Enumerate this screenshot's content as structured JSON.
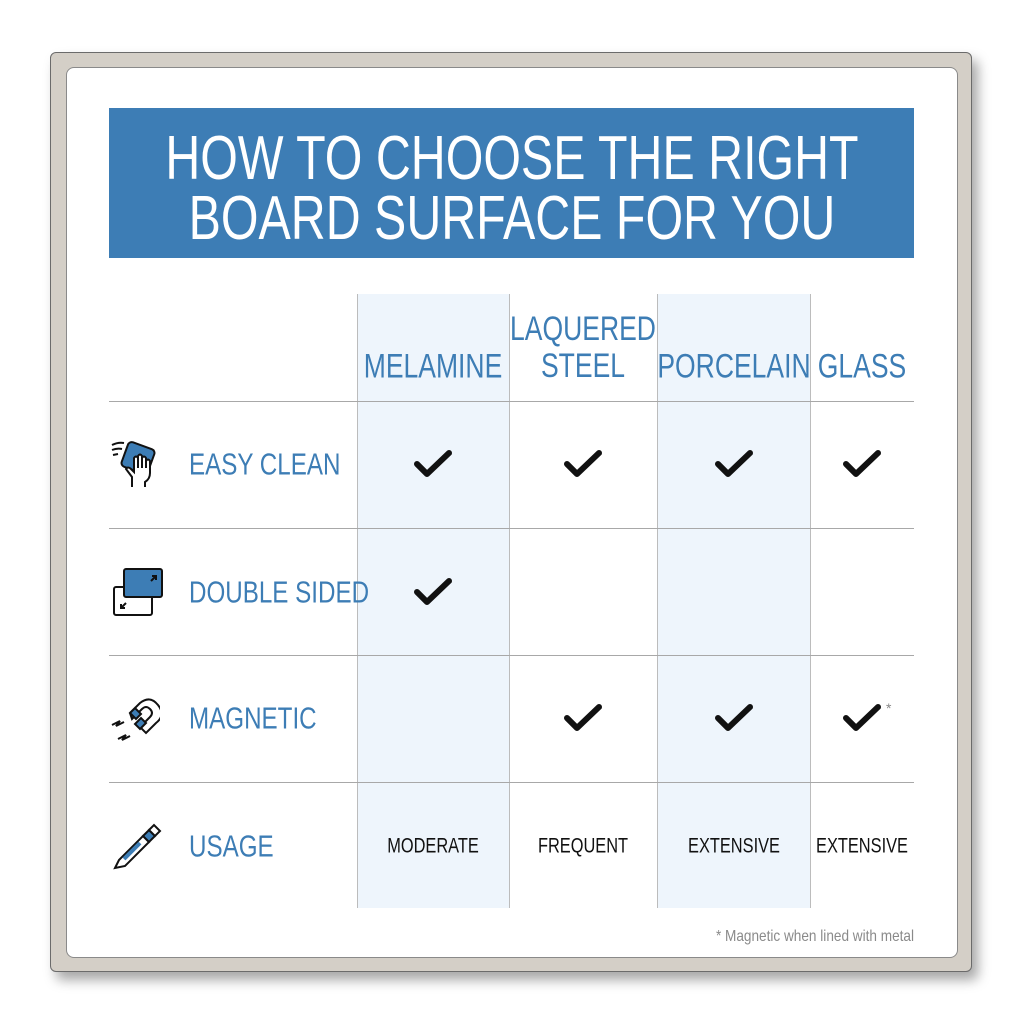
{
  "title": {
    "line1": "HOW TO CHOOSE THE RIGHT",
    "line2": "BOARD SURFACE FOR YOU"
  },
  "columns": [
    {
      "label": "MELAMINE",
      "shaded": true
    },
    {
      "label_line1": "LAQUERED",
      "label_line2": "STEEL",
      "shaded": false
    },
    {
      "label": "PORCELAIN",
      "shaded": true
    },
    {
      "label": "GLASS",
      "shaded": false
    }
  ],
  "rows": [
    {
      "label": "EASY CLEAN",
      "icon": "hand-wiping-icon",
      "checks": [
        true,
        true,
        true,
        true
      ]
    },
    {
      "label": "DOUBLE SIDED",
      "icon": "double-sided-board-icon",
      "checks": [
        true,
        false,
        false,
        false
      ]
    },
    {
      "label": "MAGNETIC",
      "icon": "magnet-icon",
      "checks": [
        false,
        true,
        true,
        true
      ],
      "glass_note_marker": "*"
    },
    {
      "label": "USAGE",
      "icon": "marker-icon",
      "values": [
        "MODERATE",
        "FREQUENT",
        "EXTENSIVE",
        "EXTENSIVE"
      ]
    }
  ],
  "footnote": "* Magnetic when lined with metal",
  "colors": {
    "accent": "#3d7db5",
    "column_shade": "#eef5fc",
    "frame": "#d4cfc7"
  }
}
